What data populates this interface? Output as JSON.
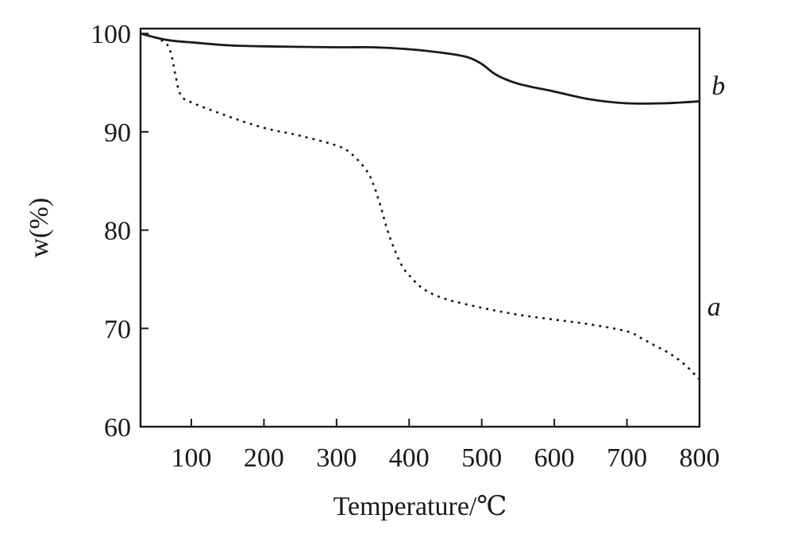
{
  "chart_data": {
    "type": "line",
    "xlabel": "Temperature/℃",
    "ylabel": "w(%)",
    "xlim": [
      30,
      800
    ],
    "ylim": [
      60,
      100.5
    ],
    "xticks": [
      100,
      200,
      300,
      400,
      500,
      600,
      700,
      800
    ],
    "yticks": [
      60,
      70,
      80,
      90,
      100
    ],
    "grid": false,
    "legend": "none",
    "series": [
      {
        "name": "a",
        "style": "dotted",
        "color": "#1a1a1a",
        "label_at": [
          820,
          71.3
        ],
        "x": [
          30,
          50,
          65,
          72,
          78,
          85,
          100,
          150,
          200,
          250,
          300,
          320,
          340,
          350,
          360,
          370,
          380,
          390,
          400,
          420,
          450,
          500,
          550,
          600,
          650,
          700,
          720,
          740,
          760,
          780,
          800
        ],
        "y": [
          100,
          99.6,
          99.0,
          98.0,
          95.8,
          93.8,
          93.0,
          91.6,
          90.4,
          89.6,
          88.6,
          87.8,
          86.2,
          84.8,
          82.6,
          80.0,
          78.0,
          76.4,
          75.4,
          74.0,
          73.0,
          72.1,
          71.4,
          70.9,
          70.4,
          69.7,
          69.0,
          68.2,
          67.4,
          66.3,
          64.8
        ]
      },
      {
        "name": "b",
        "style": "solid",
        "color": "#1a1a1a",
        "label_at": [
          826,
          93.8
        ],
        "x": [
          30,
          50,
          70,
          100,
          150,
          200,
          300,
          350,
          400,
          450,
          480,
          500,
          520,
          550,
          600,
          650,
          700,
          750,
          800
        ],
        "y": [
          100,
          99.6,
          99.3,
          99.1,
          98.8,
          98.7,
          98.6,
          98.6,
          98.4,
          98.0,
          97.6,
          96.9,
          95.8,
          94.9,
          94.1,
          93.3,
          92.9,
          92.9,
          93.1
        ]
      }
    ]
  }
}
